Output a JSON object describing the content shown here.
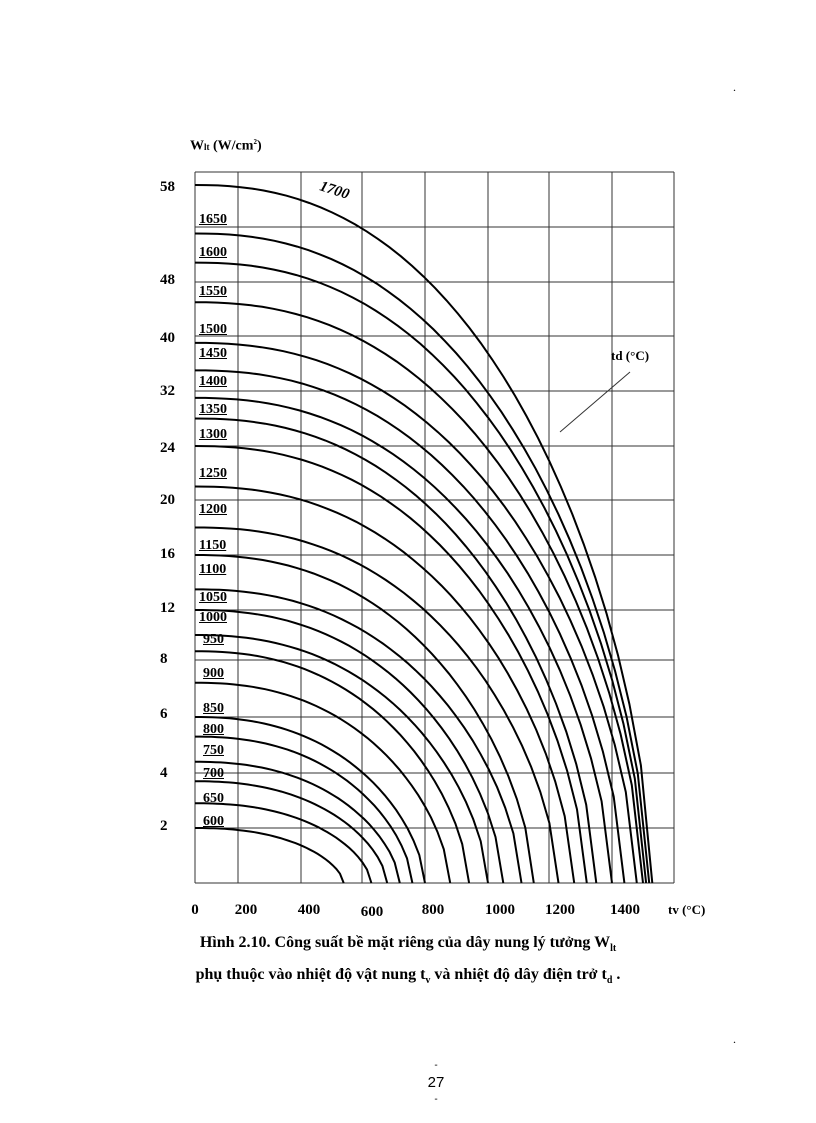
{
  "chart_data": {
    "type": "line",
    "title": "Hình 2.10. Công suất bề mặt riêng của dây nung lý tưởng W_lt phụ thuộc vào nhiệt độ vật nung t_v và nhiệt độ dây điện trở t_d",
    "xlabel": "t_v (°C)",
    "ylabel": "W_lt (W/cm²)",
    "x_ticks": [
      0,
      200,
      400,
      600,
      800,
      1000,
      1200,
      1400
    ],
    "y_ticks": [
      2,
      4,
      6,
      8,
      12,
      16,
      20,
      24,
      32,
      40,
      48,
      58
    ],
    "xlim": [
      0,
      1500
    ],
    "grid": true,
    "series_parameter": "t_d (°C)",
    "series": [
      {
        "name": "600",
        "w_at_0": 2.0,
        "tv_at_zero_w": 540
      },
      {
        "name": "650",
        "w_at_0": 2.9,
        "tv_at_zero_w": 630
      },
      {
        "name": "700",
        "w_at_0": 3.7,
        "tv_at_zero_w": 680
      },
      {
        "name": "750",
        "w_at_0": 4.4,
        "tv_at_zero_w": 720
      },
      {
        "name": "800",
        "w_at_0": 5.3,
        "tv_at_zero_w": 760
      },
      {
        "name": "850",
        "w_at_0": 6.0,
        "tv_at_zero_w": 800
      },
      {
        "name": "900",
        "w_at_0": 7.2,
        "tv_at_zero_w": 880
      },
      {
        "name": "950",
        "w_at_0": 8.7,
        "tv_at_zero_w": 940
      },
      {
        "name": "1000",
        "w_at_0": 10.0,
        "tv_at_zero_w": 1000
      },
      {
        "name": "1050",
        "w_at_0": 12.0,
        "tv_at_zero_w": 1050
      },
      {
        "name": "1100",
        "w_at_0": 13.5,
        "tv_at_zero_w": 1110
      },
      {
        "name": "1150",
        "w_at_0": 16.0,
        "tv_at_zero_w": 1150
      },
      {
        "name": "1200",
        "w_at_0": 18.0,
        "tv_at_zero_w": 1230
      },
      {
        "name": "1250",
        "w_at_0": 21.0,
        "tv_at_zero_w": 1280
      },
      {
        "name": "1300",
        "w_at_0": 24.0,
        "tv_at_zero_w": 1320
      },
      {
        "name": "1350",
        "w_at_0": 28.0,
        "tv_at_zero_w": 1350
      },
      {
        "name": "1400",
        "w_at_0": 31.0,
        "tv_at_zero_w": 1400
      },
      {
        "name": "1450",
        "w_at_0": 35.0,
        "tv_at_zero_w": 1440
      },
      {
        "name": "1500",
        "w_at_0": 39.0,
        "tv_at_zero_w": 1480
      },
      {
        "name": "1550",
        "w_at_0": 45.0,
        "tv_at_zero_w": 1500
      },
      {
        "name": "1600",
        "w_at_0": 50.0,
        "tv_at_zero_w": 1510
      },
      {
        "name": "1650",
        "w_at_0": 53.0,
        "tv_at_zero_w": 1520
      },
      {
        "name": "1700",
        "w_at_0": 58.0,
        "tv_at_zero_w": 1530
      }
    ],
    "annotations": [
      "t_d (°C)",
      "1700"
    ]
  },
  "figure": {
    "y_axis_title": "Wlt (W/cm²)",
    "y_axis_title_main": "W",
    "y_axis_title_sub": "lt",
    "y_axis_title_rest": " (W/cm",
    "y_axis_title_sup": "2",
    "y_axis_title_end": ")",
    "x_unit_label": "tv (°C)",
    "td_label": "td (°C)",
    "label_1700": "1700",
    "y_tick_labels": [
      "58",
      "48",
      "40",
      "32",
      "24",
      "20",
      "16",
      "12",
      "8",
      "6",
      "4",
      "2"
    ],
    "x_tick_labels": [
      "0",
      "200",
      "400",
      "600",
      "800",
      "1000",
      "1200",
      "1400"
    ],
    "curve_labels": [
      "1650",
      "1600",
      "1550",
      "1500",
      "1450",
      "1400",
      "1350",
      "1300",
      "1250",
      "1200",
      "1150",
      "1100",
      "1050",
      "1000",
      "950",
      "900",
      "850",
      "800",
      "750",
      "700",
      "650",
      "600"
    ]
  },
  "caption": {
    "line1_main": "Hình 2.10. Công suất bề mặt riêng của dây nung lý tưởng W",
    "line1_sub": "lt",
    "line2_a": "phụ thuộc vào nhiệt độ vật nung t",
    "line2_sub_v": "v",
    "line2_b": " và nhiệt độ dây điện trở t",
    "line2_sub_d": "d",
    "line2_end": " ."
  },
  "page": {
    "number": "27",
    "dash_top": "-",
    "dash_bottom": "-",
    "dot_top": ".",
    "dot_bottom": "."
  }
}
